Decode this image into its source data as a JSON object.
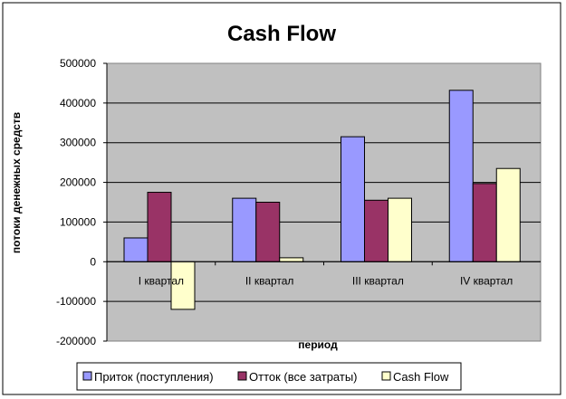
{
  "chart_data": {
    "type": "bar",
    "title": "Cash Flow",
    "xlabel": "период",
    "ylabel": "потоки денежных средств",
    "categories": [
      "I квартал",
      "II квартал",
      "III квартал",
      "IV квартал"
    ],
    "series": [
      {
        "name": "Приток (поступления)",
        "values": [
          60000,
          160000,
          315000,
          432000
        ],
        "color": "#9999ff"
      },
      {
        "name": "Отток (все затраты)",
        "values": [
          175000,
          150000,
          155000,
          197000
        ],
        "color": "#993366"
      },
      {
        "name": "Cash Flow",
        "values": [
          -120000,
          10000,
          160000,
          235000
        ],
        "color": "#ffffcc"
      }
    ],
    "ylim": [
      -200000,
      500000
    ],
    "yticks": [
      500000,
      400000,
      300000,
      200000,
      100000,
      0,
      -100000,
      -200000
    ],
    "grid": true,
    "legend_position": "bottom",
    "plot_background": "#c0c0c0"
  }
}
